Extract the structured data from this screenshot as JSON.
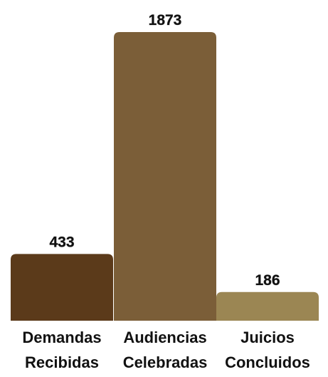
{
  "chart_data": {
    "type": "bar",
    "categories": [
      [
        "Demandas",
        "Recibidas"
      ],
      [
        "Audiencias",
        "Celebradas"
      ],
      [
        "Juicios",
        "Concluidos"
      ]
    ],
    "values": [
      433,
      1873,
      186
    ],
    "value_labels": [
      "433",
      "1873",
      "186"
    ],
    "colors": [
      "#5b3a1a",
      "#7b5e38",
      "#9b8653"
    ],
    "title": "",
    "xlabel": "",
    "ylabel": "",
    "ylim": [
      0,
      1873
    ],
    "grid": false,
    "legend": "none"
  }
}
